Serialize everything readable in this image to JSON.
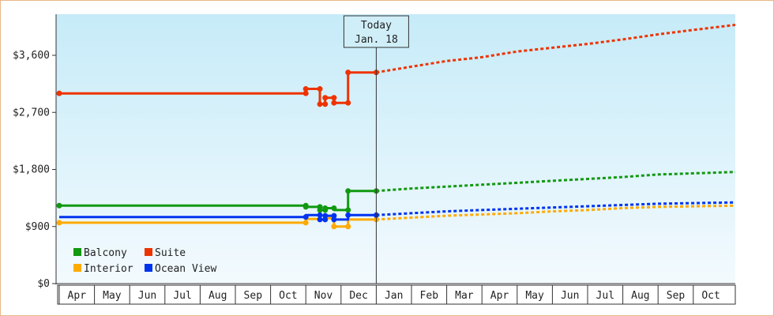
{
  "chart_data": {
    "type": "line",
    "y_ticks": [
      "$0",
      "$900",
      "$1,800",
      "$2,700",
      "$3,600"
    ],
    "ylim": [
      0,
      3600
    ],
    "x_labels": [
      "Apr",
      "May",
      "Jun",
      "Jul",
      "Aug",
      "Sep",
      "Oct",
      "Nov",
      "Dec",
      "Jan",
      "Feb",
      "Mar",
      "Apr",
      "May",
      "Jun",
      "Jul",
      "Aug",
      "Sep",
      "Oct"
    ],
    "today": {
      "line1": "Today",
      "line2": "Jan. 18",
      "x": 9.0
    },
    "grid": false,
    "legend_position": "bottom-left",
    "series": [
      {
        "name": "Balcony",
        "color": "#119911",
        "history": [
          [
            0.0,
            1230
          ],
          [
            7.0,
            1230
          ],
          [
            7.0,
            1210
          ],
          [
            7.4,
            1210
          ],
          [
            7.4,
            1160
          ],
          [
            7.55,
            1160
          ],
          [
            7.55,
            1190
          ],
          [
            7.8,
            1190
          ],
          [
            7.8,
            1160
          ],
          [
            8.2,
            1160
          ],
          [
            8.2,
            1460
          ],
          [
            9.0,
            1460
          ]
        ],
        "markers": [
          [
            0.0,
            1230
          ],
          [
            7.0,
            1230
          ],
          [
            7.0,
            1210
          ],
          [
            7.4,
            1210
          ],
          [
            7.4,
            1160
          ],
          [
            7.55,
            1160
          ],
          [
            7.55,
            1190
          ],
          [
            7.8,
            1190
          ],
          [
            8.2,
            1160
          ],
          [
            8.2,
            1460
          ],
          [
            9.0,
            1460
          ]
        ],
        "forecast": [
          [
            9.0,
            1460
          ],
          [
            10.0,
            1500
          ],
          [
            11.0,
            1530
          ],
          [
            12.0,
            1560
          ],
          [
            13.0,
            1590
          ],
          [
            14.0,
            1620
          ],
          [
            15.0,
            1650
          ],
          [
            16.0,
            1680
          ],
          [
            17.0,
            1720
          ],
          [
            19.3,
            1760
          ]
        ]
      },
      {
        "name": "Suite",
        "color": "#ee3300",
        "history": [
          [
            0.0,
            3000
          ],
          [
            7.0,
            3000
          ],
          [
            7.0,
            3070
          ],
          [
            7.4,
            3070
          ],
          [
            7.4,
            2830
          ],
          [
            7.55,
            2830
          ],
          [
            7.55,
            2930
          ],
          [
            7.8,
            2930
          ],
          [
            7.8,
            2850
          ],
          [
            8.2,
            2850
          ],
          [
            8.2,
            3330
          ],
          [
            9.0,
            3330
          ]
        ],
        "markers": [
          [
            0.0,
            3000
          ],
          [
            7.0,
            3000
          ],
          [
            7.0,
            3070
          ],
          [
            7.4,
            3070
          ],
          [
            7.4,
            2830
          ],
          [
            7.55,
            2830
          ],
          [
            7.55,
            2930
          ],
          [
            7.8,
            2930
          ],
          [
            7.8,
            2850
          ],
          [
            8.2,
            2850
          ],
          [
            8.2,
            3330
          ],
          [
            9.0,
            3330
          ]
        ],
        "forecast": [
          [
            9.0,
            3330
          ],
          [
            10.0,
            3420
          ],
          [
            11.0,
            3510
          ],
          [
            12.0,
            3570
          ],
          [
            13.0,
            3660
          ],
          [
            14.0,
            3720
          ],
          [
            15.0,
            3780
          ],
          [
            16.0,
            3850
          ],
          [
            17.0,
            3930
          ],
          [
            18.0,
            4000
          ],
          [
            19.3,
            4080
          ]
        ]
      },
      {
        "name": "Interior",
        "color": "#ffaa00",
        "history": [
          [
            0.0,
            960
          ],
          [
            7.0,
            960
          ],
          [
            7.0,
            1020
          ],
          [
            7.4,
            1020
          ],
          [
            7.4,
            1010
          ],
          [
            7.55,
            1010
          ],
          [
            7.55,
            1030
          ],
          [
            7.8,
            1030
          ],
          [
            7.8,
            900
          ],
          [
            8.2,
            900
          ],
          [
            8.2,
            1010
          ],
          [
            9.0,
            1010
          ]
        ],
        "markers": [
          [
            0.0,
            960
          ],
          [
            7.0,
            960
          ],
          [
            7.8,
            900
          ],
          [
            8.2,
            900
          ],
          [
            9.0,
            1010
          ]
        ],
        "forecast": [
          [
            9.0,
            1010
          ],
          [
            10.0,
            1040
          ],
          [
            11.0,
            1070
          ],
          [
            12.0,
            1090
          ],
          [
            13.0,
            1110
          ],
          [
            14.0,
            1140
          ],
          [
            15.0,
            1160
          ],
          [
            16.0,
            1190
          ],
          [
            17.0,
            1210
          ],
          [
            19.3,
            1230
          ]
        ]
      },
      {
        "name": "Ocean View",
        "color": "#0033ee",
        "history": [
          [
            0.0,
            1050
          ],
          [
            7.0,
            1050
          ],
          [
            7.0,
            1080
          ],
          [
            7.4,
            1080
          ],
          [
            7.4,
            1010
          ],
          [
            7.55,
            1010
          ],
          [
            7.55,
            1070
          ],
          [
            7.8,
            1070
          ],
          [
            7.8,
            1010
          ],
          [
            8.2,
            1010
          ],
          [
            8.2,
            1080
          ],
          [
            9.0,
            1080
          ]
        ],
        "markers": [
          [
            7.0,
            1050
          ],
          [
            7.4,
            1080
          ],
          [
            7.4,
            1010
          ],
          [
            7.55,
            1010
          ],
          [
            7.55,
            1070
          ],
          [
            7.8,
            1070
          ],
          [
            7.8,
            1010
          ],
          [
            8.2,
            1080
          ],
          [
            9.0,
            1080
          ]
        ],
        "forecast": [
          [
            9.0,
            1080
          ],
          [
            10.0,
            1110
          ],
          [
            11.0,
            1140
          ],
          [
            12.0,
            1160
          ],
          [
            13.0,
            1180
          ],
          [
            14.0,
            1200
          ],
          [
            15.0,
            1220
          ],
          [
            16.0,
            1240
          ],
          [
            17.0,
            1260
          ],
          [
            19.3,
            1280
          ]
        ]
      }
    ]
  }
}
